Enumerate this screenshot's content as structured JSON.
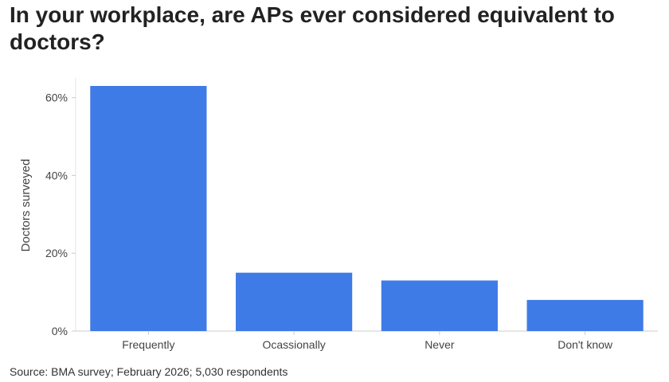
{
  "chart_data": {
    "type": "bar",
    "title": "In your workplace, are APs ever considered equivalent to doctors?",
    "categories": [
      "Frequently",
      "Ocassionally",
      "Never",
      "Don't know"
    ],
    "values": [
      63,
      15,
      13,
      8
    ],
    "ylabel": "Doctors surveyed",
    "xlabel": "",
    "ylim": [
      0,
      65
    ],
    "yticks": [
      0,
      20,
      40,
      60
    ],
    "ytick_labels": [
      "0%",
      "20%",
      "40%",
      "60%"
    ],
    "unit": "%",
    "bar_color": "#3f7be6",
    "grid": false,
    "legend": "none"
  },
  "source": "Source: BMA survey; February 2026; 5,030 respondents"
}
